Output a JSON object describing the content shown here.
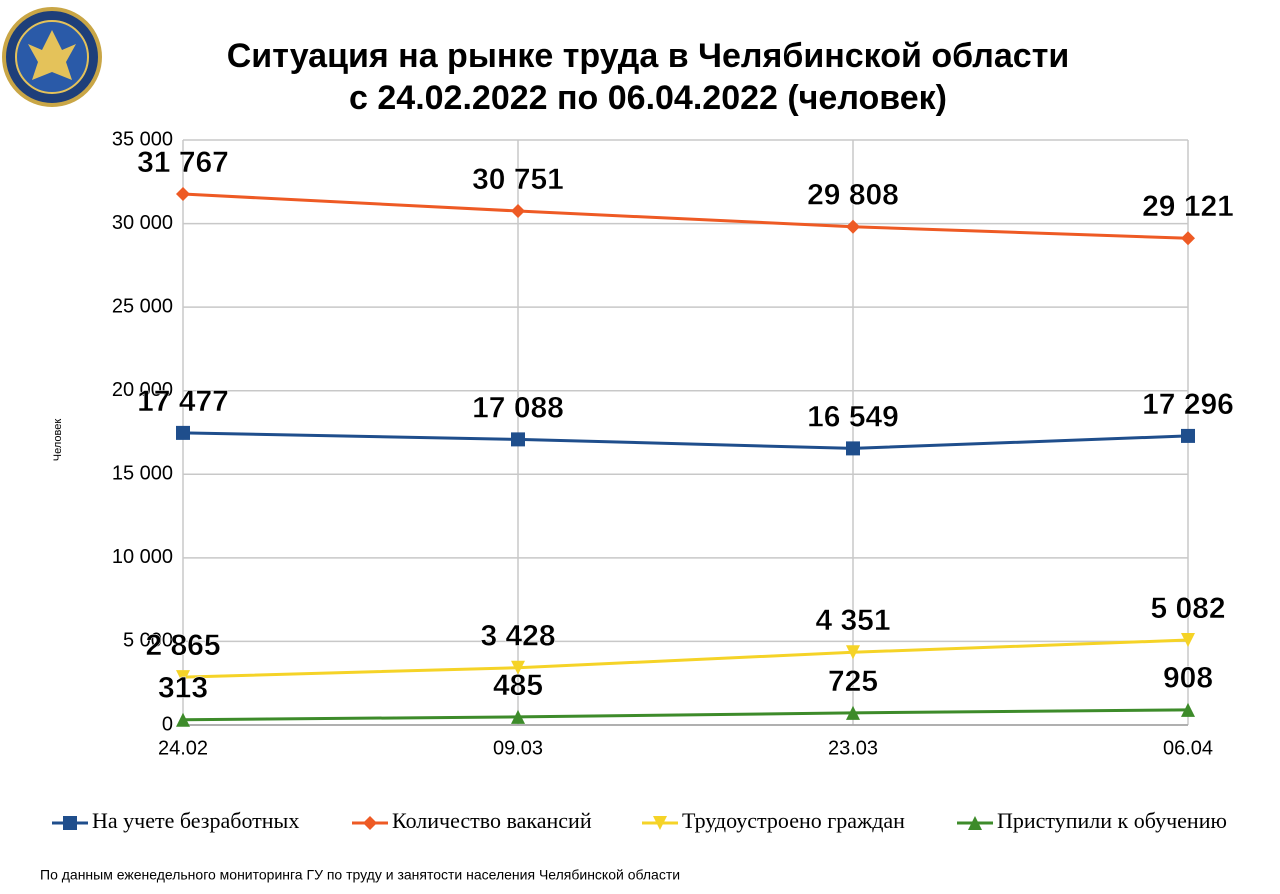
{
  "chart_data": {
    "type": "line",
    "title": "Ситуация на рынке труда в Челябинской области",
    "subtitle": "с 24.02.2022 по 06.04.2022 (человек)",
    "y_label": "Человек",
    "note": "По данным еженедельного мониторинга ГУ по труду и занятости населения Челябинской области",
    "categories": [
      "24.02",
      "09.03",
      "23.03",
      "06.04"
    ],
    "series": [
      {
        "name": "На учете безработных",
        "color": "#1f4e8c",
        "label_color": "#4a6fa5",
        "marker": "square",
        "values": [
          17477,
          17088,
          16549,
          17296
        ],
        "value_labels": [
          "17 477",
          "17 088",
          "16 549",
          "17 296"
        ]
      },
      {
        "name": "Количество вакансий",
        "color": "#ee5a24",
        "label_color": "#e0201b",
        "marker": "diamond",
        "values": [
          31767,
          30751,
          29808,
          29121
        ],
        "value_labels": [
          "31 767",
          "30 751",
          "29 808",
          "29 121"
        ]
      },
      {
        "name": "Трудоустроено граждан",
        "color": "#f5d327",
        "label_color": "#e8c92a",
        "marker": "triangle-down",
        "values": [
          2865,
          3428,
          4351,
          5082
        ],
        "value_labels": [
          "2 865",
          "3 428",
          "4 351",
          "5 082"
        ]
      },
      {
        "name": "Приступили к обучению",
        "color": "#3d8b2a",
        "label_color": "#8cc04a",
        "marker": "triangle-up",
        "values": [
          313,
          485,
          725,
          908
        ]
      }
    ],
    "ylim": [
      0,
      35000
    ],
    "yticks": [
      0,
      {
        "value": 5000,
        "label": "5 000"
      },
      {
        "value": 10000,
        "label": "10 000"
      },
      {
        "value": 15000,
        "label": "15 000"
      },
      {
        "value": 20000,
        "label": "20 000"
      },
      {
        "value": 25000,
        "label": "25 000"
      },
      {
        "value": 30000,
        "label": "30 000"
      },
      {
        "value": 35000,
        "label": "35 000"
      }
    ],
    "grid": true,
    "legend": "bottom"
  }
}
